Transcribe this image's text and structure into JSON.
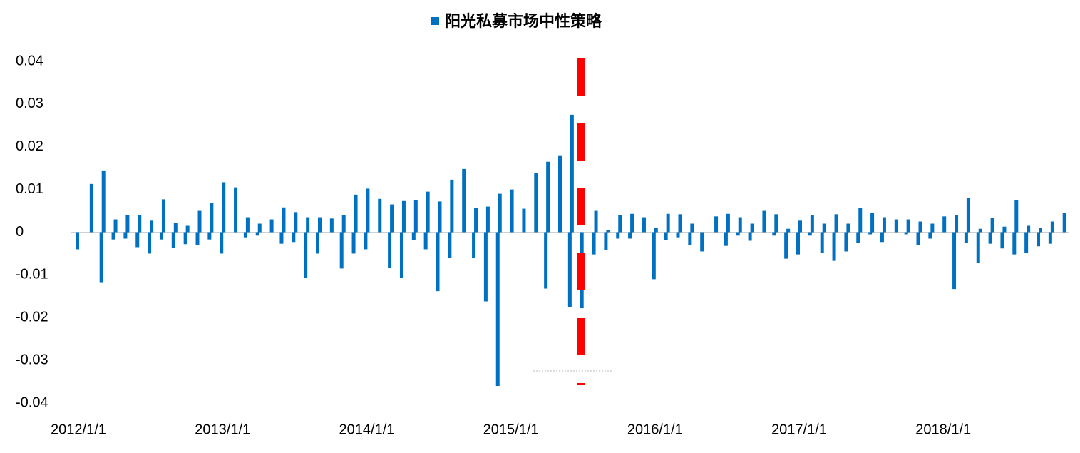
{
  "chart_data": {
    "type": "bar",
    "series": [
      {
        "name": "阳光私募市场中性策略",
        "color": "#0070c0",
        "values": [
          null,
          -0.004,
          0.0113,
          null,
          0.0143,
          -0.0117,
          0.003,
          -0.0017,
          0.004,
          -0.0015,
          0.004,
          -0.0035,
          0.0027,
          -0.005,
          0.0077,
          -0.0017,
          0.0022,
          -0.0037,
          0.0015,
          -0.0028,
          0.005,
          -0.003,
          0.0068,
          -0.0017,
          0.0117,
          -0.005,
          0.0105,
          null,
          0.0035,
          -0.0012,
          0.002,
          -0.0008,
          0.003,
          null,
          0.0058,
          -0.0027,
          0.0047,
          -0.0023,
          0.0035,
          -0.0107,
          0.0035,
          -0.005,
          0.0032,
          null,
          0.004,
          -0.0085,
          0.0088,
          -0.005,
          0.0102,
          -0.004,
          0.0078,
          null,
          0.0065,
          -0.0083,
          0.0073,
          -0.0107,
          0.0075,
          -0.0018,
          0.0095,
          -0.004,
          0.0072,
          -0.0138,
          0.0123,
          -0.006,
          0.0148,
          null,
          0.0057,
          -0.006,
          0.006,
          -0.0162,
          0.009,
          -0.036,
          0.01,
          null,
          0.0055,
          null,
          0.0138,
          null,
          0.0165,
          -0.0132,
          0.018,
          null,
          0.0275,
          -0.0175,
          null,
          -0.0178,
          0.005,
          -0.0052,
          0.0005,
          -0.0042,
          0.004,
          -0.0015,
          0.0043,
          -0.0015,
          0.0035,
          null,
          0.001,
          -0.011,
          0.0043,
          -0.0018,
          0.0042,
          -0.0012,
          0.002,
          -0.003,
          null,
          -0.0045,
          0.0037,
          null,
          0.0043,
          -0.0032,
          0.0035,
          -0.0008,
          0.002,
          -0.002,
          0.005,
          null,
          0.0042,
          -0.0008,
          0.0008,
          -0.0062,
          0.0027,
          -0.0052,
          0.004,
          -0.0008,
          0.002,
          -0.0048,
          0.0042,
          -0.0067,
          0.002,
          -0.0045,
          0.0057,
          -0.0025,
          0.0045,
          -0.0005,
          0.0035,
          -0.0023,
          0.003,
          null,
          0.003,
          -0.0005,
          0.0025,
          -0.003,
          0.002,
          -0.0015,
          0.0037,
          null,
          0.004,
          -0.0133,
          0.008,
          -0.0025,
          0.0008,
          -0.0072,
          0.0033,
          -0.0027,
          0.0013,
          -0.0038,
          0.0075,
          -0.0052,
          0.0015,
          -0.0048,
          0.001,
          -0.0033,
          0.0025,
          -0.0027,
          0.0045,
          null
        ]
      }
    ],
    "categories": [
      "2012/1/1",
      null,
      null,
      null,
      null,
      null,
      null,
      null,
      null,
      null,
      null,
      null,
      null,
      null,
      null,
      null,
      null,
      null,
      null,
      null,
      null,
      null,
      null,
      null,
      "2013/1/1",
      null,
      null,
      null,
      null,
      null,
      null,
      null,
      null,
      null,
      null,
      null,
      null,
      null,
      null,
      null,
      null,
      null,
      null,
      null,
      null,
      null,
      null,
      null,
      "2014/1/1",
      null,
      null,
      null,
      null,
      null,
      null,
      null,
      null,
      null,
      null,
      null,
      null,
      null,
      null,
      null,
      null,
      null,
      null,
      null,
      null,
      null,
      null,
      null,
      "2015/1/1",
      null,
      null,
      null,
      null,
      null,
      null,
      null,
      null,
      null,
      null,
      null,
      null,
      null,
      null,
      null,
      null,
      null,
      null,
      null,
      null,
      null,
      null,
      null,
      "2016/1/1",
      null,
      null,
      null,
      null,
      null,
      null,
      null,
      null,
      null,
      null,
      null,
      null,
      null,
      null,
      null,
      null,
      null,
      null,
      null,
      null,
      null,
      null,
      null,
      "2017/1/1",
      null,
      null,
      null,
      null,
      null,
      null,
      null,
      null,
      null,
      null,
      null,
      null,
      null,
      null,
      null,
      null,
      null,
      null,
      null,
      null,
      null,
      null,
      null,
      "2018/1/1",
      null,
      null,
      null,
      null,
      null,
      null,
      null,
      null,
      null,
      null,
      null,
      null,
      null,
      null,
      null,
      null,
      null,
      null,
      null,
      null,
      null
    ],
    "ylim": [
      -0.04,
      0.04
    ],
    "yticks": [
      0.04,
      0.03,
      0.02,
      0.01,
      0,
      -0.01,
      -0.02,
      -0.03,
      -0.04
    ],
    "grid": false
  }
}
